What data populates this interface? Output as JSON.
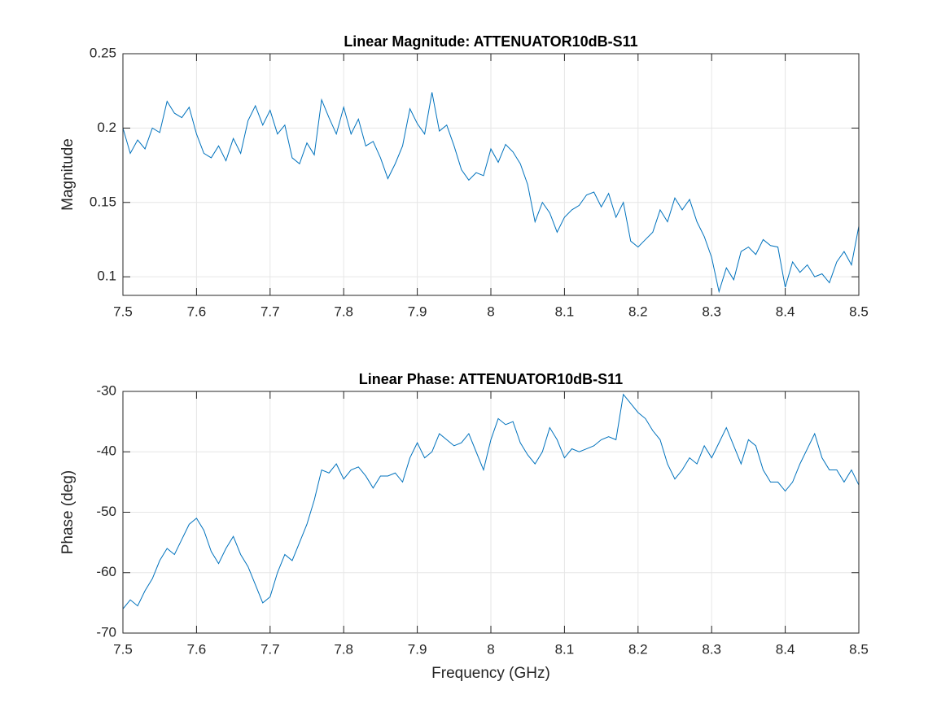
{
  "chart_data": [
    {
      "type": "line",
      "title": "Linear Magnitude: ATTENUATOR10dB-S11",
      "ylabel": "Magnitude",
      "color": "#0072bd",
      "grid": true,
      "xlim": [
        7.5,
        8.5
      ],
      "xticks": [
        7.5,
        7.6,
        7.7,
        7.8,
        7.9,
        8,
        8.1,
        8.2,
        8.3,
        8.4,
        8.5
      ],
      "ylim": [
        0.0875,
        0.25
      ],
      "yticks": [
        0.1,
        0.15,
        0.2,
        0.25
      ],
      "x": [
        7.5,
        7.51,
        7.52,
        7.53,
        7.54,
        7.55,
        7.56,
        7.57,
        7.58,
        7.59,
        7.6,
        7.61,
        7.62,
        7.63,
        7.64,
        7.65,
        7.66,
        7.67,
        7.68,
        7.69,
        7.7,
        7.71,
        7.72,
        7.73,
        7.74,
        7.75,
        7.76,
        7.77,
        7.78,
        7.79,
        7.8,
        7.81,
        7.82,
        7.83,
        7.84,
        7.85,
        7.86,
        7.87,
        7.88,
        7.89,
        7.9,
        7.91,
        7.92,
        7.93,
        7.94,
        7.95,
        7.96,
        7.97,
        7.98,
        7.99,
        8,
        8.01,
        8.02,
        8.03,
        8.04,
        8.05,
        8.06,
        8.07,
        8.08,
        8.09,
        8.1,
        8.11,
        8.12,
        8.13,
        8.14,
        8.15,
        8.16,
        8.17,
        8.18,
        8.19,
        8.2,
        8.21,
        8.22,
        8.23,
        8.24,
        8.25,
        8.26,
        8.27,
        8.28,
        8.29,
        8.3,
        8.31,
        8.32,
        8.33,
        8.34,
        8.35,
        8.36,
        8.37,
        8.38,
        8.39,
        8.4,
        8.41,
        8.42,
        8.43,
        8.44,
        8.45,
        8.46,
        8.47,
        8.48,
        8.49,
        8.5
      ],
      "values": [
        0.2,
        0.183,
        0.192,
        0.186,
        0.2,
        0.197,
        0.218,
        0.21,
        0.207,
        0.214,
        0.196,
        0.183,
        0.18,
        0.188,
        0.178,
        0.193,
        0.183,
        0.205,
        0.215,
        0.202,
        0.212,
        0.196,
        0.202,
        0.18,
        0.176,
        0.19,
        0.182,
        0.219,
        0.207,
        0.196,
        0.214,
        0.196,
        0.206,
        0.188,
        0.191,
        0.18,
        0.166,
        0.176,
        0.188,
        0.213,
        0.203,
        0.196,
        0.224,
        0.198,
        0.202,
        0.188,
        0.172,
        0.165,
        0.17,
        0.168,
        0.186,
        0.177,
        0.189,
        0.184,
        0.176,
        0.162,
        0.137,
        0.15,
        0.143,
        0.13,
        0.14,
        0.145,
        0.148,
        0.155,
        0.157,
        0.147,
        0.156,
        0.14,
        0.15,
        0.124,
        0.12,
        0.125,
        0.13,
        0.145,
        0.137,
        0.153,
        0.145,
        0.152,
        0.137,
        0.127,
        0.113,
        0.09,
        0.106,
        0.098,
        0.117,
        0.12,
        0.115,
        0.125,
        0.121,
        0.12,
        0.093,
        0.11,
        0.103,
        0.108,
        0.1,
        0.102,
        0.096,
        0.11,
        0.117,
        0.108,
        0.134
      ]
    },
    {
      "type": "line",
      "title": "Linear Phase: ATTENUATOR10dB-S11",
      "ylabel": "Phase (deg)",
      "xlabel": "Frequency (GHz)",
      "color": "#0072bd",
      "grid": true,
      "xlim": [
        7.5,
        8.5
      ],
      "xticks": [
        7.5,
        7.6,
        7.7,
        7.8,
        7.9,
        8,
        8.1,
        8.2,
        8.3,
        8.4,
        8.5
      ],
      "ylim": [
        -70,
        -30
      ],
      "yticks": [
        -70,
        -60,
        -50,
        -40,
        -30
      ],
      "x": [
        7.5,
        7.51,
        7.52,
        7.53,
        7.54,
        7.55,
        7.56,
        7.57,
        7.58,
        7.59,
        7.6,
        7.61,
        7.62,
        7.63,
        7.64,
        7.65,
        7.66,
        7.67,
        7.68,
        7.69,
        7.7,
        7.71,
        7.72,
        7.73,
        7.74,
        7.75,
        7.76,
        7.77,
        7.78,
        7.79,
        7.8,
        7.81,
        7.82,
        7.83,
        7.84,
        7.85,
        7.86,
        7.87,
        7.88,
        7.89,
        7.9,
        7.91,
        7.92,
        7.93,
        7.94,
        7.95,
        7.96,
        7.97,
        7.98,
        7.99,
        8,
        8.01,
        8.02,
        8.03,
        8.04,
        8.05,
        8.06,
        8.07,
        8.08,
        8.09,
        8.1,
        8.11,
        8.12,
        8.13,
        8.14,
        8.15,
        8.16,
        8.17,
        8.18,
        8.19,
        8.2,
        8.21,
        8.22,
        8.23,
        8.24,
        8.25,
        8.26,
        8.27,
        8.28,
        8.29,
        8.3,
        8.31,
        8.32,
        8.33,
        8.34,
        8.35,
        8.36,
        8.37,
        8.38,
        8.39,
        8.4,
        8.41,
        8.42,
        8.43,
        8.44,
        8.45,
        8.46,
        8.47,
        8.48,
        8.49,
        8.5
      ],
      "values": [
        -66,
        -64.5,
        -65.5,
        -63,
        -61,
        -58,
        -56,
        -57,
        -54.5,
        -52,
        -51,
        -53,
        -56.5,
        -58.5,
        -56,
        -54,
        -57,
        -59,
        -62,
        -65,
        -64,
        -60,
        -57,
        -58,
        -55,
        -52,
        -48,
        -43,
        -43.5,
        -42,
        -44.5,
        -43,
        -42.5,
        -44,
        -46,
        -44,
        -44,
        -43.5,
        -45,
        -41,
        -38.5,
        -41,
        -40,
        -37,
        -38,
        -39,
        -38.5,
        -37,
        -40,
        -43,
        -38,
        -34.5,
        -35.5,
        -35,
        -38.5,
        -40.5,
        -42,
        -40,
        -36,
        -38,
        -41,
        -39.5,
        -40,
        -39.5,
        -39,
        -38,
        -37.5,
        -38,
        -30.5,
        -32,
        -33.5,
        -34.5,
        -36.5,
        -38,
        -42,
        -44.5,
        -43,
        -41,
        -42,
        -39,
        -41,
        -38.5,
        -36,
        -39,
        -42,
        -38,
        -39,
        -43,
        -45,
        -45,
        -46.5,
        -45,
        -42,
        -39.5,
        -37,
        -41,
        -43,
        -43,
        -45,
        -43,
        -45.5
      ]
    }
  ]
}
